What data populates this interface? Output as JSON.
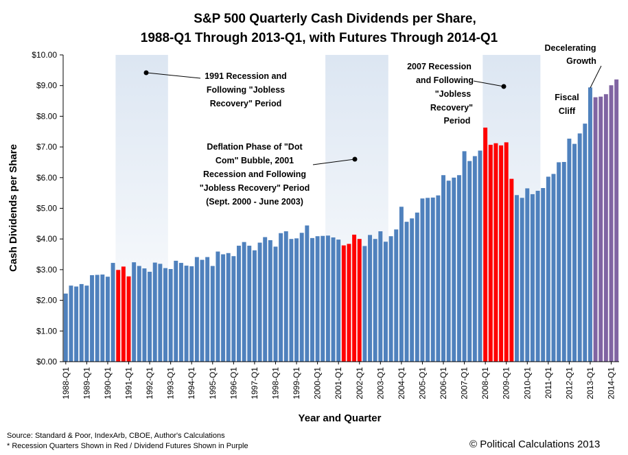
{
  "chart_data": {
    "type": "bar",
    "title": [
      "S&P 500 Quarterly Cash Dividends per Share,",
      "1988-Q1 Through 2013-Q1, with Futures Through 2014-Q1"
    ],
    "xlabel": "Year and Quarter",
    "ylabel": "Cash Dividends per Share",
    "ylim": [
      0,
      10
    ],
    "yticks": [
      "$0.00",
      "$1.00",
      "$2.00",
      "$3.00",
      "$4.00",
      "$5.00",
      "$6.00",
      "$7.00",
      "$8.00",
      "$9.00",
      "$10.00"
    ],
    "xticks": [
      "1988-Q1",
      "1989-Q1",
      "1990-Q1",
      "1991-Q1",
      "1992-Q1",
      "1993-Q1",
      "1994-Q1",
      "1995-Q1",
      "1996-Q1",
      "1997-Q1",
      "1998-Q1",
      "1999-Q1",
      "2000-Q1",
      "2001-Q1",
      "2002-Q1",
      "2003-Q1",
      "2004-Q1",
      "2005-Q1",
      "2006-Q1",
      "2007-Q1",
      "2008-Q1",
      "2009-Q1",
      "2010-Q1",
      "2011-Q1",
      "2012-Q1",
      "2013-Q1",
      "2014-Q1"
    ],
    "grid": false,
    "colors": {
      "normal": "#4f81bd",
      "recession": "#ff0000",
      "futures": "#8064a2",
      "band": "#dce6f2"
    },
    "values": [
      2.22,
      2.48,
      2.45,
      2.53,
      2.48,
      2.82,
      2.83,
      2.84,
      2.77,
      3.22,
      2.99,
      3.1,
      2.78,
      3.24,
      3.12,
      3.04,
      2.93,
      3.23,
      3.19,
      3.05,
      3.02,
      3.29,
      3.22,
      3.13,
      3.11,
      3.41,
      3.32,
      3.41,
      3.12,
      3.59,
      3.5,
      3.54,
      3.44,
      3.78,
      3.9,
      3.78,
      3.63,
      3.88,
      4.06,
      3.96,
      3.75,
      4.19,
      4.25,
      4.0,
      4.02,
      4.2,
      4.44,
      4.03,
      4.09,
      4.1,
      4.11,
      4.05,
      3.98,
      3.79,
      3.84,
      4.14,
      4.0,
      3.77,
      4.13,
      4.0,
      4.25,
      3.91,
      4.09,
      4.31,
      5.05,
      4.56,
      4.67,
      4.86,
      5.32,
      5.34,
      5.35,
      5.42,
      6.08,
      5.9,
      6.0,
      6.08,
      6.86,
      6.54,
      6.7,
      6.88,
      7.63,
      7.07,
      7.12,
      7.05,
      7.15,
      5.96,
      5.43,
      5.34,
      5.65,
      5.46,
      5.57,
      5.66,
      6.03,
      6.12,
      6.5,
      6.51,
      7.27,
      7.1,
      7.44,
      7.76,
      8.94,
      8.62,
      8.64,
      8.72,
      9.01,
      9.2
    ],
    "categories_start": "1988-Q1",
    "categories_end": "2014-Q2",
    "recession_indices": [
      10,
      11,
      12,
      53,
      54,
      55,
      56,
      80,
      81,
      82,
      83,
      84,
      85
    ],
    "futures_indices": [
      101,
      102,
      103,
      104,
      105
    ],
    "shaded_periods": [
      {
        "label": "1991 Recession and Following \"Jobless Recovery\" Period",
        "start": "1990-Q3",
        "end": "1992-Q4"
      },
      {
        "label": "Deflation Phase of \"Dot Com\" Bubble, 2001 Recession and Following \"Jobless Recovery\" Period (Sept. 2000 - June 2003)",
        "start": "2000-Q3",
        "end": "2003-Q2"
      },
      {
        "label": "2007 Recession and Following \"Jobless Recovery\" Period",
        "start": "2008-Q1",
        "end": "2010-Q3"
      }
    ],
    "annotations": [
      {
        "lines": [
          "1991 Recession and",
          "Following \"Jobless",
          "Recovery\" Period"
        ]
      },
      {
        "lines": [
          "Deflation Phase of \"Dot",
          "Com\" Bubble, 2001",
          "Recession and Following",
          "\"Jobless Recovery\" Period",
          "(Sept. 2000 - June 2003)"
        ]
      },
      {
        "lines": [
          "2007 Recession",
          "and Following",
          "\"Jobless",
          "Recovery\"",
          "Period"
        ]
      },
      {
        "lines": [
          "Decelerating",
          "Growth"
        ]
      },
      {
        "lines": [
          "Fiscal",
          "Cliff"
        ]
      }
    ]
  },
  "footer": {
    "source": "Source: Standard & Poor, IndexArb, CBOE, Author's Calculations",
    "note": "* Recession Quarters Shown in Red / Dividend Futures Shown in Purple",
    "copyright": "© Political Calculations 2013"
  }
}
